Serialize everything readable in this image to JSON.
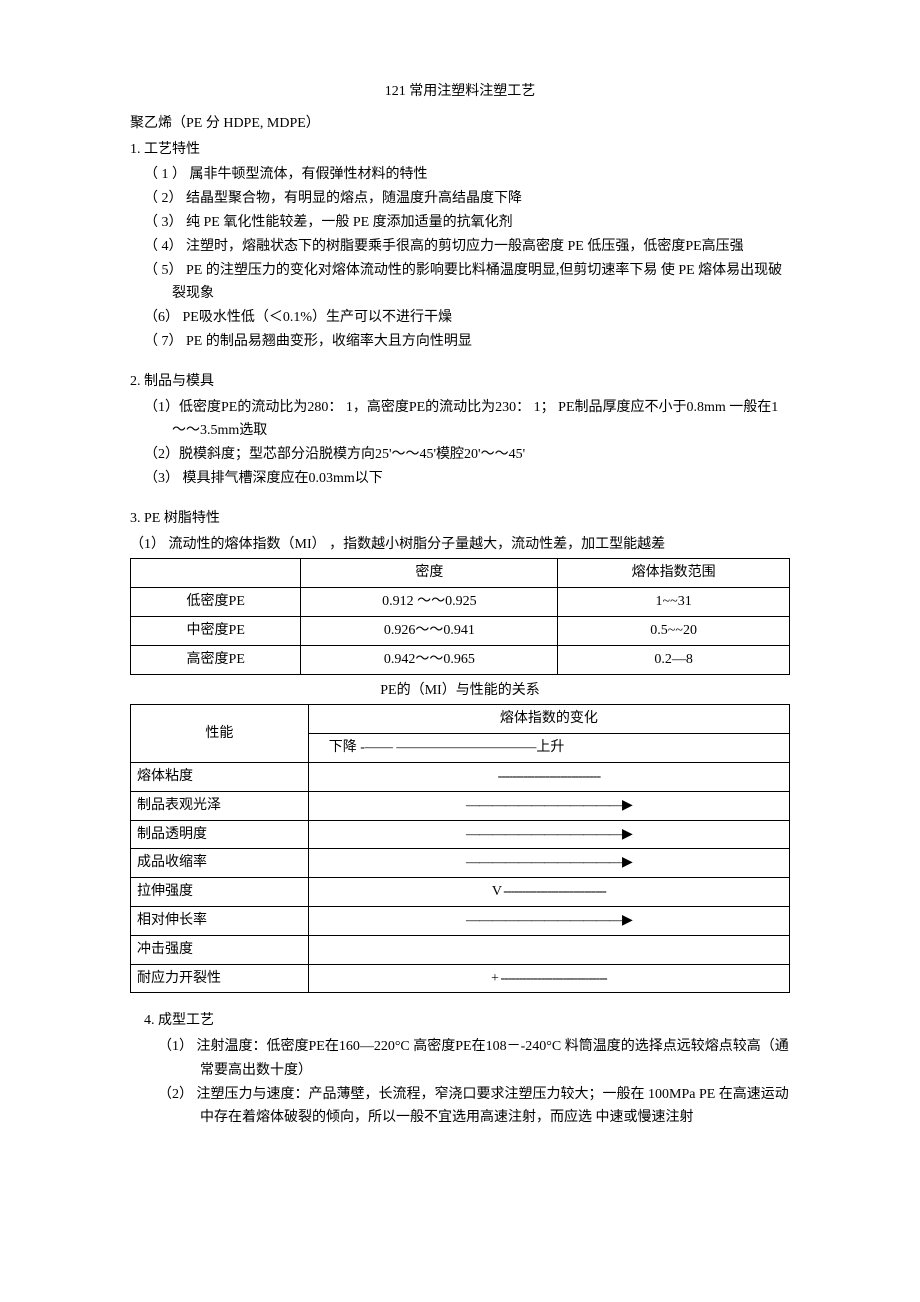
{
  "title": "121 常用注塑料注塑工艺",
  "subtitle": "聚乙烯（PE 分 HDPE, MDPE）",
  "section1": {
    "header": "1. 工艺特性",
    "items": [
      "（ 1 ）  属非牛顿型流体，有假弹性材料的特性",
      "（ 2）  结晶型聚合物，有明显的熔点，随温度升高结晶度下降",
      "（ 3）  纯 PE 氧化性能较差，一般 PE 度添加适量的抗氧化剂",
      "（ 4）  注塑时，熔融状态下的树脂要乘手很高的剪切应力一般高密度 PE 低压强，低密度PE高压强",
      "（ 5）  PE  的注塑压力的变化对熔体流动性的影响要比料桶温度明显,但剪切速率下易 使 PE 熔体易出现破裂现象",
      "（6） PE吸水性低（＜0.1%）生产可以不进行干燥",
      "（ 7）  PE 的制品易翘曲变形，收缩率大且方向性明显"
    ]
  },
  "section2": {
    "header": "2. 制品与模具",
    "items": [
      "（1）低密度PE的流动比为280：  1，高密度PE的流动比为230：  1；   PE制品厚度应不小于0.8mm 一般在1～～3.5mm选取",
      "（2）脱模斜度；型芯部分沿脱模方向25'～～45'模腔20'～～45'",
      "（3）  模具排气槽深度应在0.03mm以下"
    ]
  },
  "section3": {
    "header": "3. PE 树脂特性",
    "intro": "（1）   流动性的熔体指数（MI） ，指数越小树脂分子量越大，流动性差，加工型能越差",
    "table1": {
      "headers": [
        "",
        "密度",
        "熔体指数范围"
      ],
      "rows": [
        [
          "低密度PE",
          "0.912 ～～0.925",
          "1~~31"
        ],
        [
          "中密度PE",
          "0.926～～0.941",
          "0.5~~20"
        ],
        [
          "高密度PE",
          "0.942～～0.965",
          "0.2—8"
        ]
      ]
    },
    "table2_caption": "PE的（MI）与性能的关系",
    "table2": {
      "header1": "性能",
      "header2": "熔体指数的变化",
      "subheader": "下降 -——    ——————————上升",
      "rows": [
        [
          "熔体粘度",
          "----------------------------"
        ],
        [
          "制品表观光泽",
          "————————————▶"
        ],
        [
          "制品透明度",
          "————————————▶"
        ],
        [
          "成品收缩率",
          "————————————▶"
        ],
        [
          "拉伸强度",
          "V ----------------------------"
        ],
        [
          "相对伸长率",
          "————————————▶"
        ],
        [
          "冲击强度",
          ""
        ],
        [
          "耐应力开裂性",
          "+ -----------------------------"
        ]
      ]
    }
  },
  "section4": {
    "header": "4. 成型工艺",
    "items": [
      "（1） 注射温度：低密度PE在160—220°C    高密度PE在108－-240°C 料筒温度的选择点远较熔点较高（通常要高出数十度）",
      "（2） 注塑压力与速度：产品薄壁，长流程，窄浇口要求注塑压力较大；一般在 100MPa PE 在高速运动中存在着熔体破裂的倾向，所以一般不宜选用高速注射，而应选 中速或慢速注射"
    ]
  }
}
